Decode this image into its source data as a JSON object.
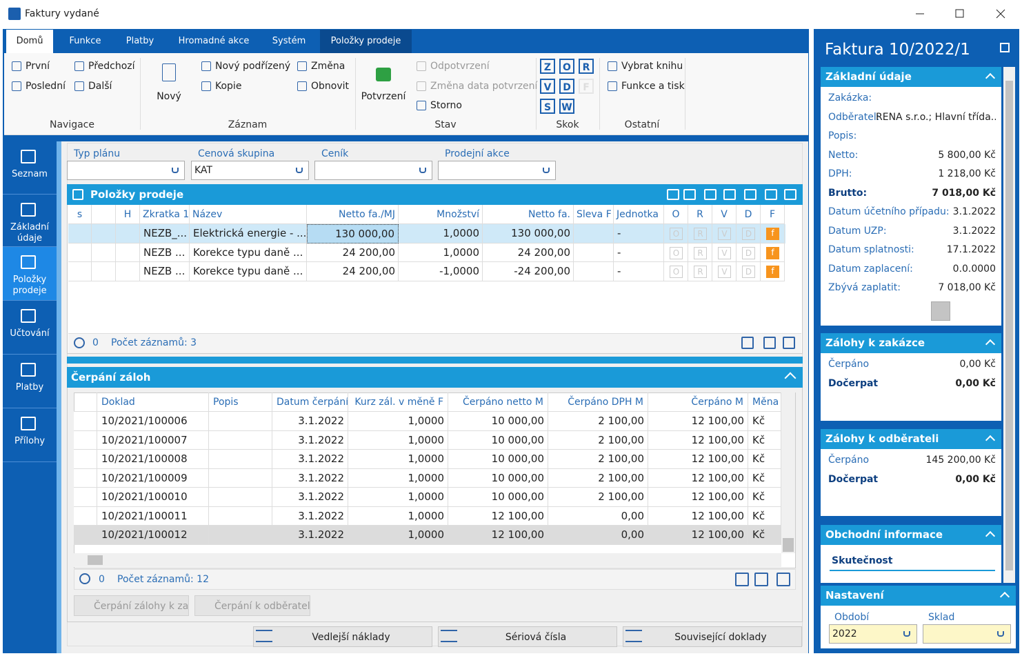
{
  "window": {
    "title": "Faktury vydané"
  },
  "tabs": [
    "Domů",
    "Funkce",
    "Platby",
    "Hromadné akce",
    "Systém",
    "Položky prodeje"
  ],
  "ribbon": {
    "groups": [
      {
        "label": "Navigace",
        "items": [
          "První",
          "Předchozí",
          "Poslední",
          "Další"
        ]
      },
      {
        "label": "Záznam",
        "items": [
          "Nový",
          "Nový podřízený",
          "Změna",
          "Kopie",
          "Obnovit"
        ]
      },
      {
        "label": "Stav",
        "items": [
          "Potvrzení",
          "Odpotvrzení",
          "Změna data potvrzení",
          "Storno"
        ]
      },
      {
        "label": "Skok",
        "items": [
          "Z",
          "O",
          "R",
          "V",
          "D",
          "F",
          "S",
          "W"
        ]
      },
      {
        "label": "Ostatní",
        "items": [
          "Vybrat knihu",
          "Funkce a tisk"
        ]
      }
    ]
  },
  "sidebar": [
    "Seznam",
    "Základní údaje",
    "Položky prodeje",
    "Účtování",
    "Platby",
    "Přílohy"
  ],
  "filters": [
    {
      "label": "Typ plánu"
    },
    {
      "label": "Cenová skupina",
      "value": "KAT"
    },
    {
      "label": "Ceník"
    },
    {
      "label": "Prodejní akce"
    }
  ],
  "items_grid": {
    "title": "Položky prodeje",
    "columns": [
      "s",
      "H",
      "Zkratka 1",
      "Název",
      "Netto fa./MJ",
      "Množství",
      "Netto fa.",
      "Sleva F",
      "Jednotka",
      "O",
      "R",
      "V",
      "D",
      "F"
    ],
    "rows": [
      [
        "NEZB_...",
        "Elektrická energie - ...",
        "130 000,00",
        "1,0000",
        "130 000,00",
        "-"
      ],
      [
        "NEZB ...",
        "Korekce typu daně ...",
        "24 200,00",
        "1,0000",
        "24 200,00",
        "-"
      ],
      [
        "NEZB ...",
        "Korekce typu daně ...",
        "24 200,00",
        "-1,0000",
        "-24 200,00",
        "-"
      ]
    ],
    "row_flags": [
      "O",
      "R",
      "V",
      "D",
      "f"
    ],
    "footer": {
      "count": "0",
      "records": "Počet záznamů: 3"
    }
  },
  "advances_grid": {
    "title": "Čerpání záloh",
    "columns": [
      "Doklad",
      "Popis",
      "Datum čerpání",
      "Kurz zál. v měně F",
      "Čerpáno netto M",
      "Čerpáno DPH M",
      "Čerpáno M",
      "Měna"
    ],
    "rows": [
      [
        "10/2021/100006",
        "3.1.2022",
        "1,0000",
        "10 000,00",
        "2 100,00",
        "12 100,00",
        "Kč"
      ],
      [
        "10/2021/100007",
        "3.1.2022",
        "1,0000",
        "10 000,00",
        "2 100,00",
        "12 100,00",
        "Kč"
      ],
      [
        "10/2021/100008",
        "3.1.2022",
        "1,0000",
        "10 000,00",
        "2 100,00",
        "12 100,00",
        "Kč"
      ],
      [
        "10/2021/100009",
        "3.1.2022",
        "1,0000",
        "10 000,00",
        "2 100,00",
        "12 100,00",
        "Kč"
      ],
      [
        "10/2021/100010",
        "3.1.2022",
        "1,0000",
        "10 000,00",
        "2 100,00",
        "12 100,00",
        "Kč"
      ],
      [
        "10/2021/100011",
        "3.1.2022",
        "1,0000",
        "12 100,00",
        "0,00",
        "12 100,00",
        "Kč"
      ],
      [
        "10/2021/100012",
        "3.1.2022",
        "1,0000",
        "12 100,00",
        "0,00",
        "12 100,00",
        "Kč"
      ]
    ],
    "footer": {
      "count": "0",
      "records": "Počet záznamů: 12"
    },
    "buttons": [
      "Čerpání zálohy k za...",
      "Čerpání k odběrateli"
    ]
  },
  "bottom_buttons": [
    "Vedlejší náklady",
    "Sériová čísla",
    "Související doklady"
  ],
  "detail": {
    "title": "Faktura 10/2022/1",
    "sections": [
      {
        "title": "Základní údaje",
        "fields": [
          {
            "label": "Zakázka:"
          },
          {
            "label": "Odběratel:",
            "value": "RENA s.r.o.; Hlavní třída..."
          },
          {
            "label": "Popis:"
          },
          {
            "label": "Netto:",
            "value": "5 800,00 Kč"
          },
          {
            "label": "DPH:",
            "value": "1 218,00 Kč"
          },
          {
            "label": "Brutto:",
            "value": "7 018,00 Kč",
            "bold": true
          },
          {
            "label": "Datum účetního případu:",
            "value": "3.1.2022"
          },
          {
            "label": "Datum UZP:",
            "value": "3.1.2022"
          },
          {
            "label": "Datum splatnosti:",
            "value": "17.1.2022"
          },
          {
            "label": "Datum zaplacení:",
            "value": "0.0.0000"
          },
          {
            "label": "Zbývá zaplatit:",
            "value": "7 018,00 Kč"
          }
        ]
      },
      {
        "title": "Zálohy k zakázce",
        "fields": [
          {
            "label": "Čerpáno",
            "value": "0,00 Kč"
          },
          {
            "label": "Dočerpat",
            "value": "0,00 Kč",
            "bold": true
          }
        ]
      },
      {
        "title": "Zálohy k odběrateli",
        "fields": [
          {
            "label": "Čerpáno",
            "value": "145 200,00 Kč"
          },
          {
            "label": "Dočerpat",
            "value": "0,00 Kč",
            "bold": true
          }
        ]
      },
      {
        "title": "Obchodní informace",
        "subtitle": "Skutečnost"
      }
    ],
    "settings": {
      "title": "Nastavení",
      "fields": [
        {
          "label": "Období",
          "value": "2022"
        },
        {
          "label": "Sklad"
        }
      ]
    }
  }
}
